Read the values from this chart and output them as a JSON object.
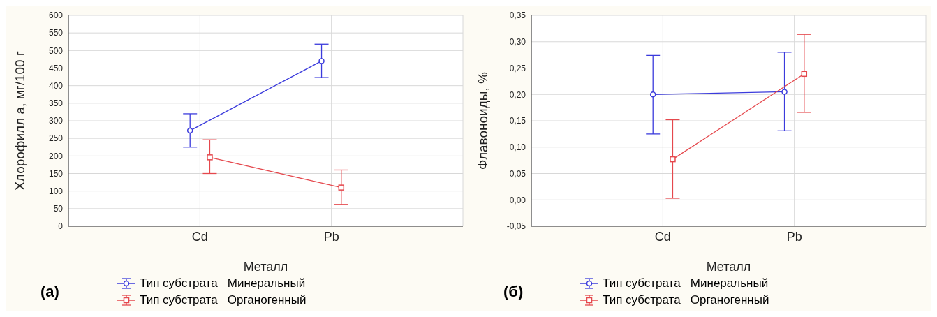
{
  "chart_data": [
    {
      "type": "line",
      "ylabel": "Хлорофилл а, мг/100 г",
      "xlabel": "Металл",
      "categories": [
        "Cd",
        "Pb"
      ],
      "ylim": [
        0,
        600
      ],
      "yticks": [
        0,
        50,
        100,
        150,
        200,
        250,
        300,
        350,
        400,
        450,
        500,
        550,
        600
      ],
      "grid": true,
      "legend": "bottom",
      "annotations": [
        "(а)"
      ],
      "series": [
        {
          "name": "Тип субстрата   Минеральный",
          "color": "#3b3bdc",
          "marker": "circle",
          "values": [
            272,
            470
          ],
          "errors": [
            [
              225,
              320
            ],
            [
              423,
              518
            ]
          ]
        },
        {
          "name": "Тип субстрата   Органогенный",
          "color": "#e5484d",
          "marker": "square",
          "values": [
            196,
            110
          ],
          "errors": [
            [
              150,
              246
            ],
            [
              62,
              160
            ]
          ]
        }
      ]
    },
    {
      "type": "line",
      "ylabel": "Флавоноиды, %",
      "xlabel": "Металл",
      "categories": [
        "Cd",
        "Pb"
      ],
      "ylim": [
        -0.05,
        0.35
      ],
      "yticks": [
        {
          "value": -0.05,
          "label": "-0,05"
        },
        {
          "value": 0,
          "label": "0,00"
        },
        {
          "value": 0.05,
          "label": "0,05"
        },
        {
          "value": 0.1,
          "label": "0,10"
        },
        {
          "value": 0.15,
          "label": "0,15"
        },
        {
          "value": 0.2,
          "label": "0,20"
        },
        {
          "value": 0.25,
          "label": "0,25"
        },
        {
          "value": 0.3,
          "label": "0,30"
        },
        {
          "value": 0.35,
          "label": "0,35"
        }
      ],
      "grid": true,
      "legend": "bottom",
      "annotations": [
        "(б)"
      ],
      "series": [
        {
          "name": "Тип субстрата   Минеральный",
          "color": "#3b3bdc",
          "marker": "circle",
          "values": [
            0.2,
            0.205
          ],
          "errors": [
            [
              0.125,
              0.274
            ],
            [
              0.131,
              0.28
            ]
          ]
        },
        {
          "name": "Тип субстрата   Органогенный",
          "color": "#e5484d",
          "marker": "square",
          "values": [
            0.077,
            0.239
          ],
          "errors": [
            [
              0.003,
              0.152
            ],
            [
              0.166,
              0.314
            ]
          ]
        }
      ]
    }
  ]
}
